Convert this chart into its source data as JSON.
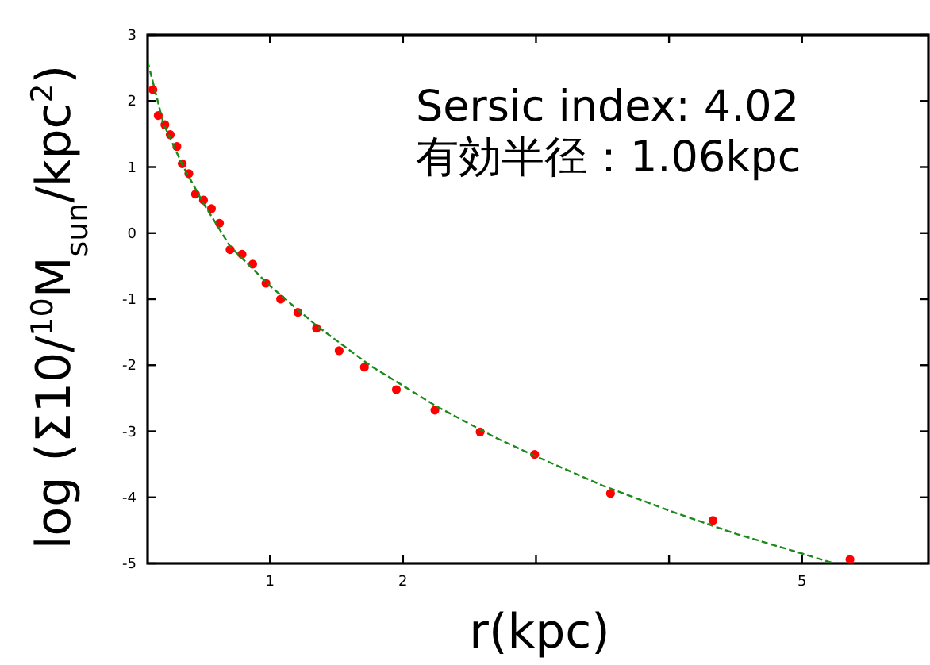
{
  "chart_data": {
    "type": "scatter",
    "xlabel": "r(kpc)",
    "ylabel": "log (Σ10/$^{10}$M$_{sun}$/kpc$^{2}$)",
    "annotations": [
      "Sersic index: 4.02",
      "有効半径：1.06kpc"
    ],
    "xlim": [
      0.08,
      5.95
    ],
    "xticks": [
      1,
      2,
      {
        "value": 3,
        "label": null
      },
      {
        "value": 4,
        "label": null
      },
      5
    ],
    "ylim": [
      -5,
      3
    ],
    "yticks": [
      -5,
      -4,
      -3,
      -2,
      -1,
      0,
      1,
      2,
      3
    ],
    "grid": false,
    "series": [
      {
        "marker": "circle",
        "color": "#ff0000",
        "x": [
          0.12,
          0.16,
          0.21,
          0.25,
          0.3,
          0.34,
          0.39,
          0.44,
          0.5,
          0.56,
          0.62,
          0.7,
          0.79,
          0.87,
          0.97,
          1.08,
          1.21,
          1.35,
          1.52,
          1.71,
          1.95,
          2.24,
          2.58,
          2.99,
          3.56,
          4.33,
          5.36
        ],
        "values": [
          2.17,
          1.78,
          1.64,
          1.49,
          1.31,
          1.05,
          0.9,
          0.59,
          0.5,
          0.37,
          0.15,
          -0.25,
          -0.32,
          -0.47,
          -0.76,
          -1.0,
          -1.2,
          -1.44,
          -1.78,
          -2.03,
          -2.37,
          -2.68,
          -3.01,
          -3.35,
          -3.94,
          -4.35,
          -4.94
        ]
      },
      {
        "type": "line",
        "color": "#1a8a1a",
        "line_style": "dashed",
        "x": [
          0.08,
          0.2,
          0.35,
          0.5,
          0.7,
          1.0,
          1.35,
          1.75,
          2.25,
          2.7,
          3.0,
          3.5,
          4.0,
          4.5,
          5.0,
          5.24
        ],
        "values": [
          2.6,
          1.65,
          1.0,
          0.45,
          -0.2,
          -0.8,
          -1.4,
          -2.0,
          -2.62,
          -3.1,
          -3.38,
          -3.82,
          -4.2,
          -4.55,
          -4.85,
          -5.0
        ]
      }
    ]
  }
}
